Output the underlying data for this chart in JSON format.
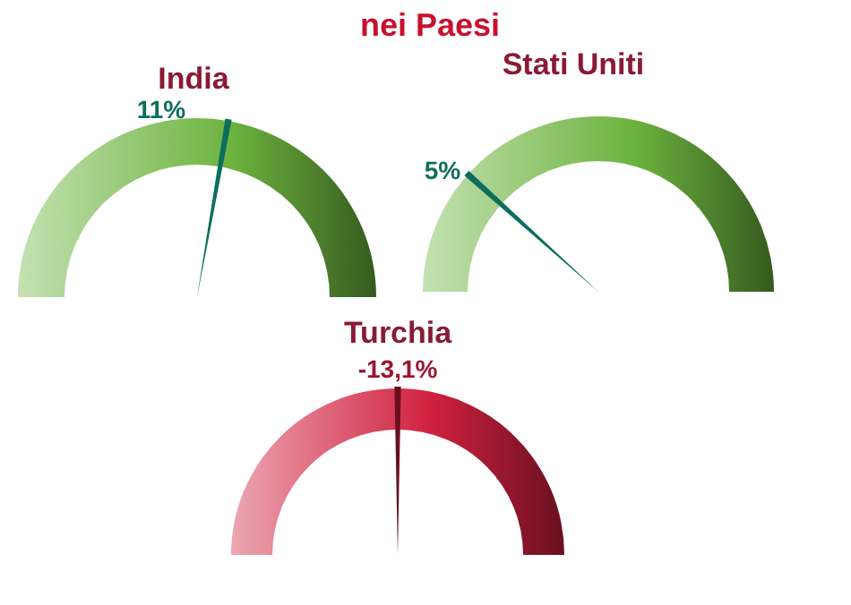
{
  "chart_data": {
    "type": "other",
    "title": "nei Paesi",
    "categories": [
      "India",
      "Stati Uniti",
      "Turchia"
    ],
    "values": [
      11,
      5,
      -13.1
    ],
    "value_labels": [
      "11%",
      "5%",
      "-13,1%"
    ],
    "colors": [
      "#6cb33e",
      "#6cb33e",
      "#d0203f"
    ]
  }
}
